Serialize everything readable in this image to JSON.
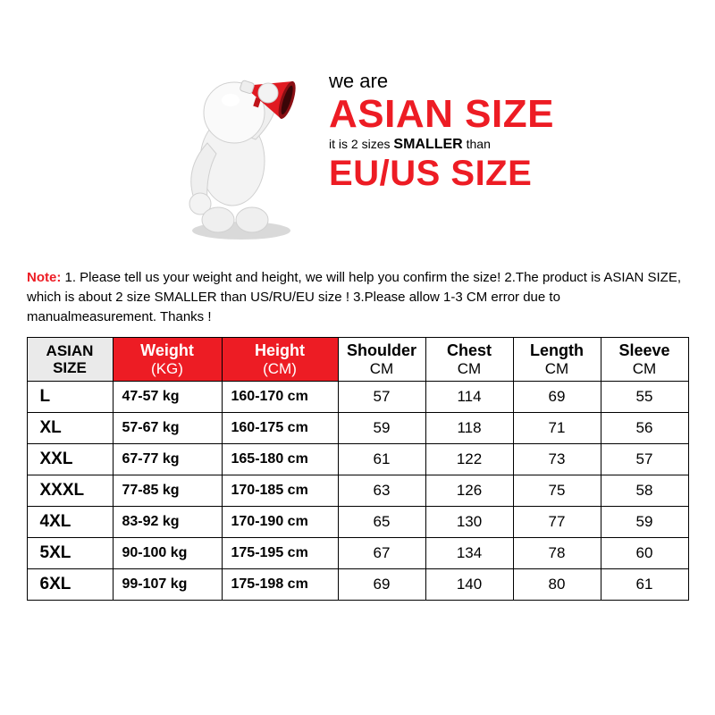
{
  "banner": {
    "line1": "we are",
    "line2": "ASIAN SIZE",
    "line3_prefix": "it is 2 sizes ",
    "line3_smaller": "SMALLER",
    "line3_suffix": " than",
    "line4": "EU/US SIZE"
  },
  "note": {
    "label": "Note:",
    "body": " 1. Please tell us your weight and height, we will help you confirm the size!  2.The product is ASIAN SIZE, which is about 2 size SMALLER than US/RU/EU size ! 3.Please allow 1-3 CM error due to manualmeasurement.  Thanks !"
  },
  "table": {
    "columns": [
      {
        "key": "size",
        "title": "ASIAN SIZE",
        "subtitle": ""
      },
      {
        "key": "weight",
        "title": "Weight",
        "subtitle": "(KG)"
      },
      {
        "key": "height",
        "title": "Height",
        "subtitle": "(CM)"
      },
      {
        "key": "shoulder",
        "title": "Shoulder",
        "subtitle": "CM"
      },
      {
        "key": "chest",
        "title": "Chest",
        "subtitle": "CM"
      },
      {
        "key": "length",
        "title": "Length",
        "subtitle": "CM"
      },
      {
        "key": "sleeve",
        "title": "Sleeve",
        "subtitle": "CM"
      }
    ],
    "rows": [
      {
        "size": "L",
        "weight": "47-57  kg",
        "height": "160-170 cm",
        "shoulder": "57",
        "chest": "114",
        "length": "69",
        "sleeve": "55"
      },
      {
        "size": "XL",
        "weight": "57-67  kg",
        "height": "160-175 cm",
        "shoulder": "59",
        "chest": "118",
        "length": "71",
        "sleeve": "56"
      },
      {
        "size": "XXL",
        "weight": "67-77  kg",
        "height": "165-180 cm",
        "shoulder": "61",
        "chest": "122",
        "length": "73",
        "sleeve": "57"
      },
      {
        "size": "XXXL",
        "weight": "77-85  kg",
        "height": "170-185 cm",
        "shoulder": "63",
        "chest": "126",
        "length": "75",
        "sleeve": "58"
      },
      {
        "size": "4XL",
        "weight": "83-92  kg",
        "height": "170-190 cm",
        "shoulder": "65",
        "chest": "130",
        "length": "77",
        "sleeve": "59"
      },
      {
        "size": "5XL",
        "weight": "90-100 kg",
        "height": "175-195 cm",
        "shoulder": "67",
        "chest": "134",
        "length": "78",
        "sleeve": "60"
      },
      {
        "size": "6XL",
        "weight": "99-107 kg",
        "height": "175-198 cm",
        "shoulder": "69",
        "chest": "140",
        "length": "80",
        "sleeve": "61"
      }
    ],
    "header_bg": {
      "asian": "#eaeaea",
      "weight": "#ed1c24",
      "height": "#ed1c24"
    },
    "border_color": "#000000"
  },
  "colors": {
    "accent_red": "#ed1c24",
    "text": "#000000",
    "bg": "#ffffff"
  }
}
